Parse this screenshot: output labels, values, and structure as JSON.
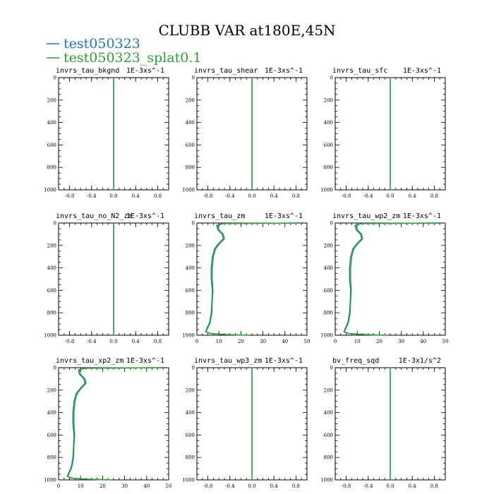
{
  "figure": {
    "title": "CLUBB VAR at180E,45N"
  },
  "legend": [
    {
      "label": "test050323",
      "color": "#1f77b4"
    },
    {
      "label": "test050323_splat0.1",
      "color": "#2ca02c"
    }
  ],
  "chart_data": [
    {
      "type": "line",
      "title": "invrs_tau_bkgnd",
      "units": "1E-3xs^-1",
      "xlim": [
        -1,
        1
      ],
      "ylim": [
        1000,
        0
      ],
      "xticks": [
        "-0.8",
        "-0.4",
        "0.0",
        "0.4",
        "0.8"
      ],
      "xtick_values": [
        -0.8,
        -0.4,
        0.0,
        0.4,
        0.8
      ],
      "yticks": [
        "0",
        "200",
        "400",
        "600",
        "800",
        "1000"
      ],
      "ytick_values": [
        0,
        200,
        400,
        600,
        800,
        1000
      ],
      "series": [
        {
          "name": "test050323",
          "x": [
            0,
            0
          ],
          "y": [
            0,
            1000
          ]
        },
        {
          "name": "test050323_splat0.1",
          "x": [
            0,
            0
          ],
          "y": [
            0,
            1000
          ]
        }
      ]
    },
    {
      "type": "line",
      "title": "invrs_tau_shear",
      "units": "1E-3xs^-1",
      "xlim": [
        -1,
        1
      ],
      "ylim": [
        1000,
        0
      ],
      "xticks": [
        "-0.8",
        "-0.4",
        "0.0",
        "0.4",
        "0.8"
      ],
      "xtick_values": [
        -0.8,
        -0.4,
        0.0,
        0.4,
        0.8
      ],
      "yticks": [
        "0",
        "200",
        "400",
        "600",
        "800",
        "1000"
      ],
      "ytick_values": [
        0,
        200,
        400,
        600,
        800,
        1000
      ],
      "series": [
        {
          "name": "test050323",
          "x": [
            0,
            0
          ],
          "y": [
            0,
            1000
          ]
        },
        {
          "name": "test050323_splat0.1",
          "x": [
            0,
            0
          ],
          "y": [
            0,
            1000
          ]
        }
      ]
    },
    {
      "type": "line",
      "title": "invrs_tau_sfc",
      "units": "1E-3xs^-1",
      "xlim": [
        -1,
        1
      ],
      "ylim": [
        1000,
        0
      ],
      "xticks": [
        "-0.8",
        "-0.4",
        "0.0",
        "0.4",
        "0.8"
      ],
      "xtick_values": [
        -0.8,
        -0.4,
        0.0,
        0.4,
        0.8
      ],
      "yticks": [
        "0",
        "200",
        "400",
        "600",
        "800",
        "1000"
      ],
      "ytick_values": [
        0,
        200,
        400,
        600,
        800,
        1000
      ],
      "series": [
        {
          "name": "test050323",
          "x": [
            0,
            0
          ],
          "y": [
            0,
            1000
          ]
        },
        {
          "name": "test050323_splat0.1",
          "x": [
            0,
            0
          ],
          "y": [
            0,
            1000
          ]
        }
      ]
    },
    {
      "type": "line",
      "title": "invrs_tau_no_N2_zm",
      "units": "1E-3xs^-1",
      "xlim": [
        -1,
        1
      ],
      "ylim": [
        1000,
        0
      ],
      "xticks": [
        "-0.8",
        "-0.4",
        "0.0",
        "0.4",
        "0.8"
      ],
      "xtick_values": [
        -0.8,
        -0.4,
        0.0,
        0.4,
        0.8
      ],
      "yticks": [
        "0",
        "200",
        "400",
        "600",
        "800",
        "1000"
      ],
      "ytick_values": [
        0,
        200,
        400,
        600,
        800,
        1000
      ],
      "series": [
        {
          "name": "test050323",
          "x": [
            0,
            0
          ],
          "y": [
            0,
            1000
          ]
        },
        {
          "name": "test050323_splat0.1",
          "x": [
            0,
            0
          ],
          "y": [
            0,
            1000
          ]
        }
      ]
    },
    {
      "type": "line",
      "title": "invrs_tau_zm",
      "units": "1E-3xs^-1",
      "xlim": [
        0,
        50
      ],
      "ylim": [
        1000,
        0
      ],
      "xticks": [
        "0",
        "10",
        "20",
        "30",
        "40",
        "50"
      ],
      "xtick_values": [
        0,
        10,
        20,
        30,
        40,
        50
      ],
      "yticks": [
        "0",
        "200",
        "400",
        "600",
        "800",
        "1000"
      ],
      "ytick_values": [
        0,
        200,
        400,
        600,
        800,
        1000
      ],
      "series": [
        {
          "name": "test050323",
          "x": [
            47,
            12,
            9,
            9.5,
            11.5,
            12,
            10,
            8,
            7,
            6.5,
            6.5,
            7,
            6.8,
            6.5,
            6,
            5.5,
            4.5,
            4,
            6,
            12,
            22
          ],
          "y": [
            0,
            5,
            20,
            60,
            100,
            140,
            180,
            230,
            300,
            400,
            500,
            600,
            700,
            800,
            860,
            900,
            940,
            970,
            985,
            993,
            1000
          ]
        },
        {
          "name": "test050323_splat0.1",
          "x": [
            47,
            12,
            9.5,
            10,
            12,
            12.5,
            10.5,
            8.5,
            7.5,
            7,
            7,
            7.3,
            7,
            6.8,
            6.3,
            5.8,
            4.8,
            4.2,
            6.5,
            13,
            24
          ],
          "y": [
            0,
            5,
            20,
            60,
            100,
            140,
            180,
            230,
            300,
            400,
            500,
            600,
            700,
            800,
            860,
            900,
            940,
            970,
            985,
            993,
            1000
          ]
        }
      ]
    },
    {
      "type": "line",
      "title": "invrs_tau_wp2_zm",
      "units": "1E-3xs^-1",
      "xlim": [
        0,
        50
      ],
      "ylim": [
        1000,
        0
      ],
      "xticks": [
        "0",
        "10",
        "20",
        "30",
        "40",
        "50"
      ],
      "xtick_values": [
        0,
        10,
        20,
        30,
        40,
        50
      ],
      "yticks": [
        "0",
        "200",
        "400",
        "600",
        "800",
        "1000"
      ],
      "ytick_values": [
        0,
        200,
        400,
        600,
        800,
        1000
      ],
      "series": [
        {
          "name": "test050323",
          "x": [
            47,
            12,
            9,
            9.5,
            11.5,
            12,
            10,
            8,
            7,
            6.5,
            6.5,
            7,
            6.8,
            6.5,
            6,
            5.5,
            4.5,
            4,
            6,
            12,
            22
          ],
          "y": [
            0,
            5,
            20,
            60,
            100,
            140,
            180,
            230,
            300,
            400,
            500,
            600,
            700,
            800,
            860,
            900,
            940,
            970,
            985,
            993,
            1000
          ]
        },
        {
          "name": "test050323_splat0.1",
          "x": [
            47,
            12,
            9.5,
            10,
            12,
            12.5,
            10.5,
            8.5,
            7.5,
            7,
            7,
            7.3,
            7,
            6.8,
            6.3,
            5.8,
            4.8,
            4.2,
            6.5,
            13,
            24
          ],
          "y": [
            0,
            5,
            20,
            60,
            100,
            140,
            180,
            230,
            300,
            400,
            500,
            600,
            700,
            800,
            860,
            900,
            940,
            970,
            985,
            993,
            1000
          ]
        }
      ]
    },
    {
      "type": "line",
      "title": "invrs_tau_xp2_zm",
      "units": "1E-3xs^-1",
      "xlim": [
        0,
        50
      ],
      "ylim": [
        1000,
        0
      ],
      "xticks": [
        "0",
        "10",
        "20",
        "30",
        "40",
        "50"
      ],
      "xtick_values": [
        0,
        10,
        20,
        30,
        40,
        50
      ],
      "yticks": [
        "0",
        "200",
        "400",
        "600",
        "800",
        "1000"
      ],
      "ytick_values": [
        0,
        200,
        400,
        600,
        800,
        1000
      ],
      "series": [
        {
          "name": "test050323",
          "x": [
            47,
            12,
            9,
            9.5,
            11.5,
            12,
            10,
            8,
            7,
            6.5,
            6.5,
            7,
            6.8,
            6.5,
            6,
            5.5,
            4.5,
            4,
            6,
            12,
            22
          ],
          "y": [
            0,
            5,
            20,
            60,
            100,
            140,
            180,
            230,
            300,
            400,
            500,
            600,
            700,
            800,
            860,
            900,
            940,
            970,
            985,
            993,
            1000
          ]
        },
        {
          "name": "test050323_splat0.1",
          "x": [
            47,
            12,
            9.5,
            10,
            12,
            12.5,
            10.5,
            8.5,
            7.5,
            7,
            7,
            7.3,
            7,
            6.8,
            6.3,
            5.8,
            4.8,
            4.2,
            6.5,
            13,
            24
          ],
          "y": [
            0,
            5,
            20,
            60,
            100,
            140,
            180,
            230,
            300,
            400,
            500,
            600,
            700,
            800,
            860,
            900,
            940,
            970,
            985,
            993,
            1000
          ]
        }
      ]
    },
    {
      "type": "line",
      "title": "invrs_tau_wp3_zm",
      "units": "1E-3xs^-1",
      "xlim": [
        -1,
        1
      ],
      "ylim": [
        1000,
        0
      ],
      "xticks": [
        "-0.8",
        "-0.4",
        "0.0",
        "0.4",
        "0.8"
      ],
      "xtick_values": [
        -0.8,
        -0.4,
        0.0,
        0.4,
        0.8
      ],
      "yticks": [
        "0",
        "200",
        "400",
        "600",
        "800",
        "1000"
      ],
      "ytick_values": [
        0,
        200,
        400,
        600,
        800,
        1000
      ],
      "series": [
        {
          "name": "test050323",
          "x": [
            0,
            0
          ],
          "y": [
            0,
            1000
          ]
        },
        {
          "name": "test050323_splat0.1",
          "x": [
            0,
            0
          ],
          "y": [
            0,
            1000
          ]
        }
      ]
    },
    {
      "type": "line",
      "title": "bv_freq_sqd",
      "units": "1E-3x1/s^2",
      "xlim": [
        -1,
        1
      ],
      "ylim": [
        1000,
        0
      ],
      "xticks": [
        "-0.8",
        "-0.4",
        "0.0",
        "0.4",
        "0.8"
      ],
      "xtick_values": [
        -0.8,
        -0.4,
        0.0,
        0.4,
        0.8
      ],
      "yticks": [
        "0",
        "200",
        "400",
        "600",
        "800",
        "1000"
      ],
      "ytick_values": [
        0,
        200,
        400,
        600,
        800,
        1000
      ],
      "series": [
        {
          "name": "test050323",
          "x": [
            0,
            0
          ],
          "y": [
            0,
            1000
          ]
        },
        {
          "name": "test050323_splat0.1",
          "x": [
            0,
            0
          ],
          "y": [
            0,
            1000
          ]
        }
      ]
    }
  ]
}
